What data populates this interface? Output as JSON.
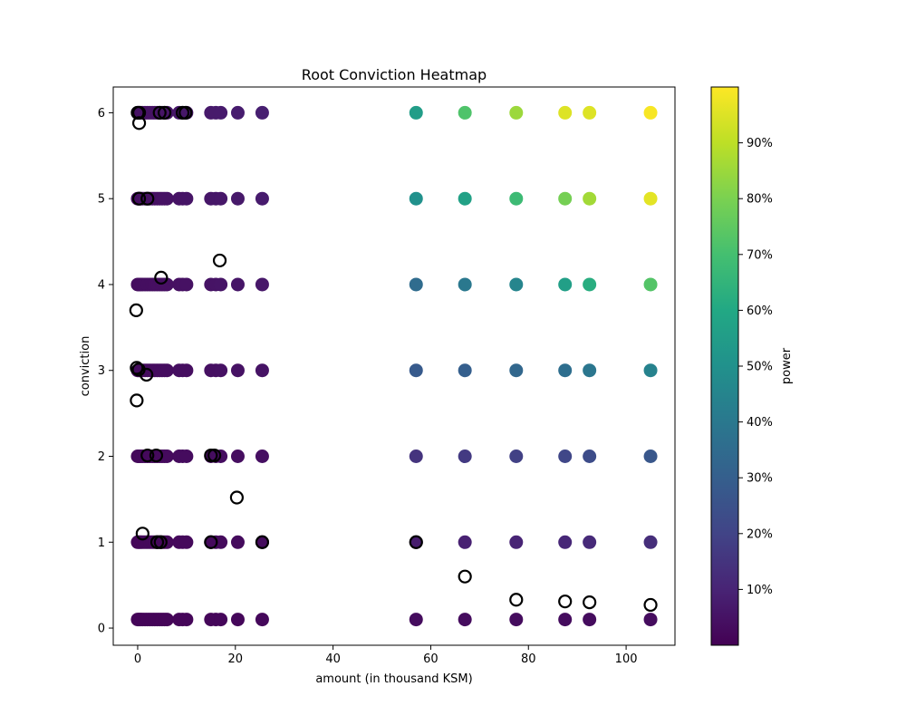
{
  "chart_data": {
    "type": "scatter",
    "title": "Root Conviction Heatmap",
    "xlabel": "amount (in thousand KSM)",
    "ylabel": "conviction",
    "xlim": [
      -5,
      110
    ],
    "ylim": [
      -0.2,
      6.3
    ],
    "xticks": [
      0,
      20,
      40,
      60,
      80,
      100
    ],
    "yticks": [
      0,
      1,
      2,
      3,
      4,
      5,
      6
    ],
    "y_tick_labels": [
      "0",
      "1",
      "2",
      "3",
      "4",
      "5",
      "6"
    ],
    "grid": false,
    "colorbar": {
      "label": "power",
      "colormap": "viridis",
      "range": [
        0,
        100
      ],
      "ticks": [
        10,
        20,
        30,
        40,
        50,
        60,
        70,
        80,
        90
      ],
      "tick_labels": [
        "10%",
        "20%",
        "30%",
        "40%",
        "50%",
        "60%",
        "70%",
        "80%",
        "90%"
      ]
    },
    "conviction_levels": [
      {
        "y": 0.1,
        "label": "0.1"
      },
      {
        "y": 1,
        "label": "1"
      },
      {
        "y": 2,
        "label": "2"
      },
      {
        "y": 3,
        "label": "3"
      },
      {
        "y": 4,
        "label": "4"
      },
      {
        "y": 5,
        "label": "5"
      },
      {
        "y": 6,
        "label": "6"
      }
    ],
    "x_amounts": [
      0,
      0.3,
      0.6,
      1,
      1.5,
      2,
      2.5,
      3,
      3.5,
      4,
      4.5,
      5,
      5.5,
      6,
      8.5,
      9.2,
      10,
      15,
      16,
      17,
      20.5,
      25.5,
      57,
      67,
      77.5,
      87.5,
      92.5,
      105
    ],
    "power_levels": [
      {
        "y": 0.1,
        "powers": {
          "57": 3,
          "67": 3,
          "77.5": 3,
          "87.5": 3,
          "92.5": 3,
          "105": 3
        }
      },
      {
        "y": 1,
        "powers": {
          "57": 8,
          "67": 9,
          "77.5": 10,
          "87.5": 11,
          "92.5": 12,
          "105": 13
        }
      },
      {
        "y": 2,
        "powers": {
          "57": 15,
          "67": 17,
          "77.5": 19,
          "87.5": 21,
          "92.5": 23,
          "105": 27
        }
      },
      {
        "y": 3,
        "powers": {
          "57": 28,
          "67": 30,
          "77.5": 33,
          "87.5": 36,
          "92.5": 39,
          "105": 44
        }
      },
      {
        "y": 4,
        "powers": {
          "57": 35,
          "67": 40,
          "77.5": 45,
          "87.5": 56,
          "92.5": 62,
          "105": 73
        }
      },
      {
        "y": 5,
        "powers": {
          "57": 50,
          "67": 57,
          "77.5": 68,
          "87.5": 79,
          "92.5": 86,
          "105": 96
        }
      },
      {
        "y": 6,
        "powers": {
          "57": 55,
          "67": 72,
          "77.5": 85,
          "87.5": 95,
          "92.5": 95,
          "105": 99
        }
      }
    ],
    "open_markers": [
      {
        "x": 0,
        "y": 6
      },
      {
        "x": 0.3,
        "y": 6
      },
      {
        "x": 4.5,
        "y": 6
      },
      {
        "x": 5.5,
        "y": 6
      },
      {
        "x": 9.2,
        "y": 6
      },
      {
        "x": 9.8,
        "y": 6
      },
      {
        "x": 0.3,
        "y": 5.88
      },
      {
        "x": 0.3,
        "y": 5
      },
      {
        "x": 2,
        "y": 5
      },
      {
        "x": 16.8,
        "y": 4.28
      },
      {
        "x": 4.8,
        "y": 4.08
      },
      {
        "x": -0.3,
        "y": 3.7
      },
      {
        "x": -0.2,
        "y": 3.03
      },
      {
        "x": 0.2,
        "y": 3.01
      },
      {
        "x": 1.8,
        "y": 2.95
      },
      {
        "x": -0.2,
        "y": 2.65
      },
      {
        "x": 2,
        "y": 2.01
      },
      {
        "x": 3.8,
        "y": 2.01
      },
      {
        "x": 15,
        "y": 2.01
      },
      {
        "x": 15.7,
        "y": 2.01
      },
      {
        "x": 20.3,
        "y": 1.52
      },
      {
        "x": 1,
        "y": 1.1
      },
      {
        "x": 4,
        "y": 1
      },
      {
        "x": 4.7,
        "y": 1
      },
      {
        "x": 15,
        "y": 1
      },
      {
        "x": 25.5,
        "y": 1
      },
      {
        "x": 57,
        "y": 1
      },
      {
        "x": 67,
        "y": 0.6
      },
      {
        "x": 77.5,
        "y": 0.33
      },
      {
        "x": 87.5,
        "y": 0.31
      },
      {
        "x": 92.5,
        "y": 0.3
      },
      {
        "x": 105,
        "y": 0.27
      }
    ]
  }
}
